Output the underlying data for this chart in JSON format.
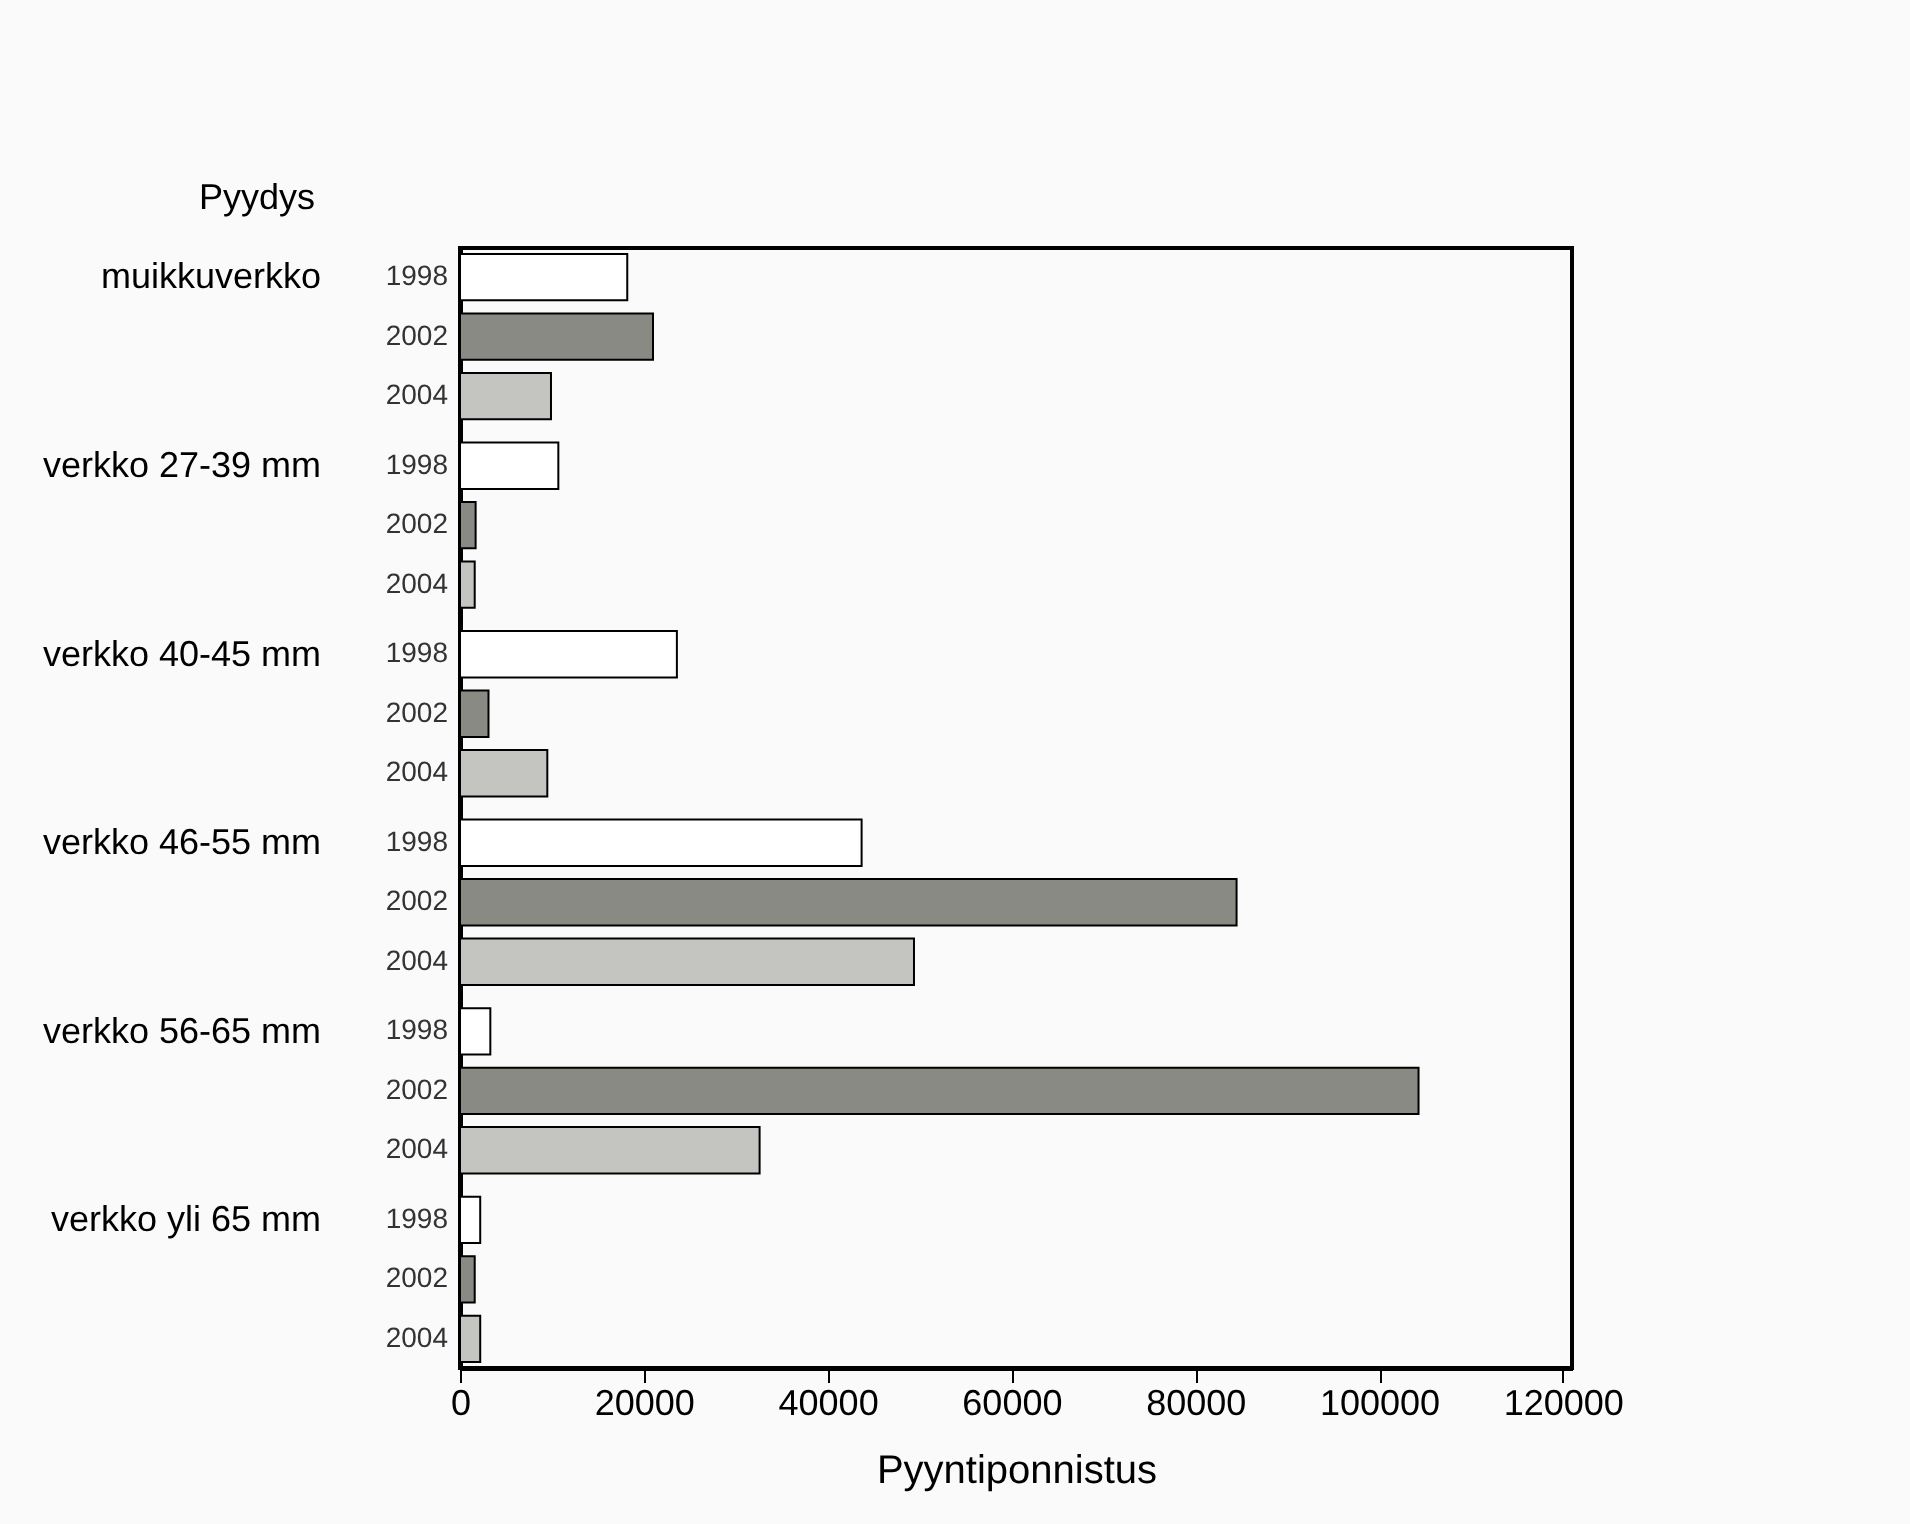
{
  "chart_data": {
    "type": "bar",
    "orientation": "horizontal",
    "xlabel": "Pyyntiponnistus",
    "ylabel": "Pyydys",
    "categories": [
      "muikkuverkko",
      "verkko 27-39 mm",
      "verkko 40-45 mm",
      "verkko 46-55 mm",
      "verkko 56-65 mm",
      "verkko yli 65 mm"
    ],
    "series": [
      {
        "name": "1998",
        "color": "#ffffff",
        "values": [
          18200,
          10700,
          23600,
          43700,
          3300,
          2200
        ]
      },
      {
        "name": "2002",
        "color": "#8a8a84",
        "values": [
          21000,
          1700,
          3100,
          84500,
          104300,
          1600
        ]
      },
      {
        "name": "2004",
        "color": "#c4c4c0",
        "values": [
          9900,
          1600,
          9500,
          49400,
          32600,
          2200
        ]
      }
    ],
    "xlim": [
      0,
      121000
    ],
    "xticks": [
      0,
      20000,
      40000,
      60000,
      80000,
      100000,
      120000
    ],
    "grid": false,
    "legend": false
  }
}
